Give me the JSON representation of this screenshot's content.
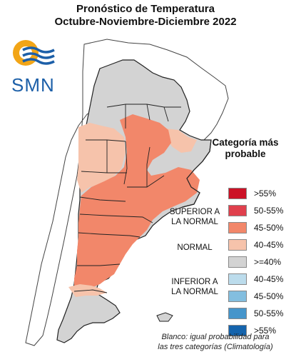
{
  "title": {
    "line1": "Pronóstico de Temperatura",
    "line2": "Octubre-Noviembre-Diciembre 2022"
  },
  "logo": {
    "text": "SMN",
    "icon": "sun-waves-icon",
    "colors": {
      "sun": "#f2a516",
      "waves": "#1c5fa8"
    }
  },
  "legend": {
    "title_line1": "Categoría más",
    "title_line2": "probable",
    "items": [
      {
        "label": ">55%",
        "color": "#cc1126"
      },
      {
        "label": "50-55%",
        "color": "#e0404d"
      },
      {
        "label": "45-50%",
        "color": "#f2876a"
      },
      {
        "label": "40-45%",
        "color": "#f6c3ab"
      },
      {
        "label": ">=40%",
        "color": "#d3d3d3"
      },
      {
        "label": "40-45%",
        "color": "#bcdcec"
      },
      {
        "label": "45-50%",
        "color": "#83bedf"
      },
      {
        "label": "50-55%",
        "color": "#4595cb"
      },
      {
        "label": ">55%",
        "color": "#1564ad"
      }
    ],
    "categories": {
      "superior": {
        "line1": "SUPERIOR A",
        "line2": "LA NORMAL"
      },
      "normal": "NORMAL",
      "inferior": {
        "line1": "INFERIOR A",
        "line2": "LA NORMAL"
      }
    }
  },
  "note": {
    "line1": "Blanco: igual probabilidad para",
    "line2": "las tres categorías (Climatología)"
  }
}
